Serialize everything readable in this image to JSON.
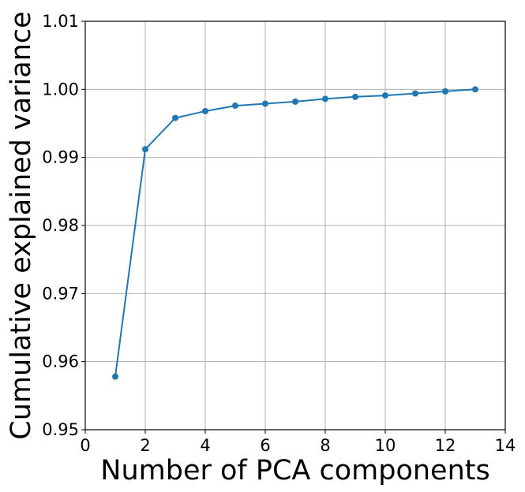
{
  "chart_data": {
    "type": "line",
    "title": "",
    "xlabel": "Number of PCA components",
    "ylabel": "Cumulative explained variance",
    "xlim": [
      0,
      14
    ],
    "ylim": [
      0.95,
      1.01
    ],
    "xticks": [
      0,
      2,
      4,
      6,
      8,
      10,
      12,
      14
    ],
    "xtick_labels": [
      "0",
      "2",
      "4",
      "6",
      "8",
      "10",
      "12",
      "14"
    ],
    "yticks": [
      0.95,
      0.96,
      0.97,
      0.98,
      0.99,
      1.0,
      1.01
    ],
    "ytick_labels": [
      "0.95",
      "0.96",
      "0.97",
      "0.98",
      "0.99",
      "1.00",
      "1.01"
    ],
    "grid": true,
    "marker": "circle",
    "series": [
      {
        "color": "#1f77b4",
        "x": [
          1,
          2,
          3,
          4,
          5,
          6,
          7,
          8,
          9,
          10,
          11,
          12,
          13
        ],
        "y": [
          0.9578,
          0.9912,
          0.9958,
          0.9968,
          0.9976,
          0.9979,
          0.9982,
          0.9986,
          0.9989,
          0.9991,
          0.9994,
          0.9997,
          1.0
        ]
      }
    ]
  }
}
